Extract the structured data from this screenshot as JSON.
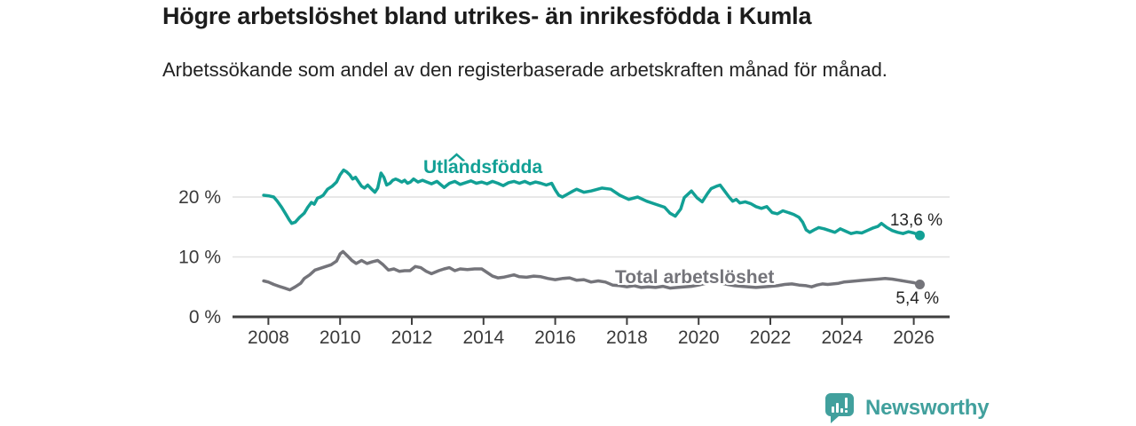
{
  "header": {
    "title": "Högre arbetslöshet bland utrikes- än inrikesfödda i Kumla",
    "subtitle": "Arbetssökande som andel av den registerbaserade arbetskraften månad för månad."
  },
  "footer": {
    "brand": "Newsworthy"
  },
  "chart_data": {
    "type": "line",
    "title": "Högre arbetslöshet bland utrikes- än inrikesfödda i Kumla",
    "subtitle": "Arbetssökande som andel av den registerbaserade arbetskraften månad för månad.",
    "xlabel": "",
    "ylabel": "",
    "xlim": [
      2007,
      2027
    ],
    "ylim": [
      0,
      27.7
    ],
    "grid": "horizontal",
    "legend_position": "inline-labels",
    "colors": {
      "grid": "#e1e1e1",
      "axis": "#3f3f3f",
      "axis_text": "#3a3a3a"
    },
    "x_ticks": [
      {
        "value": 2008,
        "label": "2008"
      },
      {
        "value": 2010,
        "label": "2010"
      },
      {
        "value": 2012,
        "label": "2012"
      },
      {
        "value": 2014,
        "label": "2014"
      },
      {
        "value": 2016,
        "label": "2016"
      },
      {
        "value": 2018,
        "label": "2018"
      },
      {
        "value": 2020,
        "label": "2020"
      },
      {
        "value": 2022,
        "label": "2022"
      },
      {
        "value": 2024,
        "label": "2024"
      },
      {
        "value": 2026,
        "label": "2026"
      }
    ],
    "y_ticks": [
      {
        "value": 0,
        "label": "0 %"
      },
      {
        "value": 10,
        "label": "10 %"
      },
      {
        "value": 20,
        "label": "20 %"
      }
    ],
    "annotations": [
      {
        "type": "caret",
        "x": 2013.25,
        "y": 27.1,
        "color": "#12a095"
      }
    ],
    "series": [
      {
        "name": "Utlandsfödda",
        "color": "#12a095",
        "end_label": "13,6 %",
        "end_value": 13.6,
        "points": [
          [
            2007.87,
            20.3
          ],
          [
            2008.0,
            20.2
          ],
          [
            2008.15,
            20.0
          ],
          [
            2008.25,
            19.3
          ],
          [
            2008.37,
            18.3
          ],
          [
            2008.5,
            17.0
          ],
          [
            2008.58,
            16.2
          ],
          [
            2008.65,
            15.6
          ],
          [
            2008.75,
            15.8
          ],
          [
            2008.87,
            16.6
          ],
          [
            2009.0,
            17.3
          ],
          [
            2009.1,
            18.3
          ],
          [
            2009.2,
            19.1
          ],
          [
            2009.28,
            18.8
          ],
          [
            2009.37,
            19.8
          ],
          [
            2009.45,
            20.0
          ],
          [
            2009.53,
            20.3
          ],
          [
            2009.65,
            21.3
          ],
          [
            2009.78,
            21.8
          ],
          [
            2009.9,
            22.5
          ],
          [
            2010.0,
            23.7
          ],
          [
            2010.1,
            24.5
          ],
          [
            2010.18,
            24.2
          ],
          [
            2010.27,
            23.7
          ],
          [
            2010.35,
            23.0
          ],
          [
            2010.43,
            23.3
          ],
          [
            2010.52,
            22.5
          ],
          [
            2010.6,
            21.8
          ],
          [
            2010.68,
            21.5
          ],
          [
            2010.77,
            22.0
          ],
          [
            2010.88,
            21.3
          ],
          [
            2010.97,
            20.8
          ],
          [
            2011.05,
            21.5
          ],
          [
            2011.14,
            24.0
          ],
          [
            2011.22,
            23.3
          ],
          [
            2011.3,
            22.0
          ],
          [
            2011.39,
            22.3
          ],
          [
            2011.47,
            22.8
          ],
          [
            2011.55,
            23.0
          ],
          [
            2011.63,
            22.8
          ],
          [
            2011.72,
            22.5
          ],
          [
            2011.8,
            22.8
          ],
          [
            2011.88,
            22.3
          ],
          [
            2011.96,
            22.5
          ],
          [
            2012.05,
            23.0
          ],
          [
            2012.17,
            22.5
          ],
          [
            2012.3,
            22.8
          ],
          [
            2012.42,
            22.5
          ],
          [
            2012.55,
            22.2
          ],
          [
            2012.7,
            22.6
          ],
          [
            2012.9,
            21.6
          ],
          [
            2013.05,
            22.3
          ],
          [
            2013.2,
            22.6
          ],
          [
            2013.35,
            22.1
          ],
          [
            2013.5,
            22.4
          ],
          [
            2013.65,
            22.7
          ],
          [
            2013.8,
            22.3
          ],
          [
            2013.95,
            22.5
          ],
          [
            2014.1,
            22.2
          ],
          [
            2014.25,
            22.6
          ],
          [
            2014.4,
            22.3
          ],
          [
            2014.55,
            21.9
          ],
          [
            2014.7,
            22.4
          ],
          [
            2014.85,
            22.6
          ],
          [
            2015.0,
            22.3
          ],
          [
            2015.15,
            22.6
          ],
          [
            2015.3,
            22.2
          ],
          [
            2015.45,
            22.5
          ],
          [
            2015.6,
            22.3
          ],
          [
            2015.75,
            22.0
          ],
          [
            2015.9,
            22.3
          ],
          [
            2016.0,
            21.2
          ],
          [
            2016.1,
            20.3
          ],
          [
            2016.2,
            20.0
          ],
          [
            2016.35,
            20.5
          ],
          [
            2016.5,
            21.0
          ],
          [
            2016.6,
            21.3
          ],
          [
            2016.8,
            20.8
          ],
          [
            2017.0,
            21.0
          ],
          [
            2017.3,
            21.5
          ],
          [
            2017.55,
            21.3
          ],
          [
            2017.8,
            20.3
          ],
          [
            2018.05,
            19.6
          ],
          [
            2018.3,
            20.0
          ],
          [
            2018.55,
            19.3
          ],
          [
            2018.8,
            18.8
          ],
          [
            2019.05,
            18.3
          ],
          [
            2019.2,
            17.3
          ],
          [
            2019.35,
            16.8
          ],
          [
            2019.5,
            18.0
          ],
          [
            2019.6,
            19.9
          ],
          [
            2019.8,
            21.0
          ],
          [
            2019.95,
            19.9
          ],
          [
            2020.1,
            19.2
          ],
          [
            2020.25,
            20.6
          ],
          [
            2020.35,
            21.4
          ],
          [
            2020.5,
            21.8
          ],
          [
            2020.6,
            22.0
          ],
          [
            2020.7,
            21.2
          ],
          [
            2020.85,
            20.0
          ],
          [
            2020.95,
            19.3
          ],
          [
            2021.05,
            19.6
          ],
          [
            2021.15,
            19.0
          ],
          [
            2021.3,
            19.2
          ],
          [
            2021.45,
            18.9
          ],
          [
            2021.6,
            18.4
          ],
          [
            2021.75,
            18.1
          ],
          [
            2021.9,
            18.4
          ],
          [
            2022.05,
            17.4
          ],
          [
            2022.2,
            17.2
          ],
          [
            2022.35,
            17.7
          ],
          [
            2022.5,
            17.4
          ],
          [
            2022.65,
            17.1
          ],
          [
            2022.8,
            16.6
          ],
          [
            2022.9,
            15.8
          ],
          [
            2023.0,
            14.5
          ],
          [
            2023.1,
            14.1
          ],
          [
            2023.25,
            14.6
          ],
          [
            2023.35,
            14.9
          ],
          [
            2023.5,
            14.7
          ],
          [
            2023.65,
            14.4
          ],
          [
            2023.8,
            14.1
          ],
          [
            2023.95,
            14.7
          ],
          [
            2024.1,
            14.3
          ],
          [
            2024.25,
            13.9
          ],
          [
            2024.4,
            14.1
          ],
          [
            2024.55,
            14.0
          ],
          [
            2024.7,
            14.4
          ],
          [
            2024.85,
            14.8
          ],
          [
            2025.0,
            15.1
          ],
          [
            2025.1,
            15.6
          ],
          [
            2025.25,
            14.9
          ],
          [
            2025.4,
            14.4
          ],
          [
            2025.55,
            14.1
          ],
          [
            2025.7,
            13.9
          ],
          [
            2025.85,
            14.2
          ],
          [
            2026.0,
            14.0
          ],
          [
            2026.17,
            13.6
          ]
        ]
      },
      {
        "name": "Total arbetslöshet",
        "color": "#74747a",
        "end_label": "5,4 %",
        "end_value": 5.4,
        "points": [
          [
            2007.87,
            6.0
          ],
          [
            2008.0,
            5.8
          ],
          [
            2008.15,
            5.4
          ],
          [
            2008.3,
            5.1
          ],
          [
            2008.45,
            4.8
          ],
          [
            2008.6,
            4.5
          ],
          [
            2008.75,
            5.0
          ],
          [
            2008.9,
            5.6
          ],
          [
            2009.0,
            6.4
          ],
          [
            2009.15,
            7.0
          ],
          [
            2009.3,
            7.8
          ],
          [
            2009.45,
            8.1
          ],
          [
            2009.6,
            8.4
          ],
          [
            2009.75,
            8.7
          ],
          [
            2009.9,
            9.3
          ],
          [
            2010.0,
            10.5
          ],
          [
            2010.08,
            10.9
          ],
          [
            2010.2,
            10.2
          ],
          [
            2010.33,
            9.4
          ],
          [
            2010.45,
            8.9
          ],
          [
            2010.6,
            9.4
          ],
          [
            2010.75,
            8.9
          ],
          [
            2010.9,
            9.2
          ],
          [
            2011.05,
            9.4
          ],
          [
            2011.2,
            8.7
          ],
          [
            2011.35,
            7.8
          ],
          [
            2011.5,
            8.0
          ],
          [
            2011.65,
            7.6
          ],
          [
            2011.8,
            7.7
          ],
          [
            2011.95,
            7.7
          ],
          [
            2012.1,
            8.4
          ],
          [
            2012.25,
            8.2
          ],
          [
            2012.4,
            7.6
          ],
          [
            2012.55,
            7.2
          ],
          [
            2012.75,
            7.7
          ],
          [
            2012.9,
            8.0
          ],
          [
            2013.05,
            8.2
          ],
          [
            2013.2,
            7.7
          ],
          [
            2013.35,
            8.0
          ],
          [
            2013.55,
            7.9
          ],
          [
            2013.75,
            8.0
          ],
          [
            2013.95,
            8.0
          ],
          [
            2014.1,
            7.4
          ],
          [
            2014.25,
            6.8
          ],
          [
            2014.4,
            6.5
          ],
          [
            2014.55,
            6.6
          ],
          [
            2014.7,
            6.8
          ],
          [
            2014.85,
            7.0
          ],
          [
            2015.0,
            6.7
          ],
          [
            2015.2,
            6.6
          ],
          [
            2015.4,
            6.8
          ],
          [
            2015.6,
            6.7
          ],
          [
            2015.8,
            6.4
          ],
          [
            2016.0,
            6.2
          ],
          [
            2016.2,
            6.4
          ],
          [
            2016.4,
            6.5
          ],
          [
            2016.6,
            6.1
          ],
          [
            2016.8,
            6.2
          ],
          [
            2017.0,
            5.8
          ],
          [
            2017.2,
            6.0
          ],
          [
            2017.4,
            5.8
          ],
          [
            2017.6,
            5.3
          ],
          [
            2017.8,
            5.2
          ],
          [
            2018.0,
            5.0
          ],
          [
            2018.2,
            5.2
          ],
          [
            2018.4,
            4.9
          ],
          [
            2018.6,
            5.0
          ],
          [
            2018.8,
            4.9
          ],
          [
            2019.0,
            5.1
          ],
          [
            2019.2,
            4.8
          ],
          [
            2019.4,
            4.9
          ],
          [
            2019.6,
            5.0
          ],
          [
            2019.8,
            5.1
          ],
          [
            2020.0,
            5.3
          ],
          [
            2020.2,
            5.6
          ],
          [
            2020.4,
            5.9
          ],
          [
            2020.6,
            5.7
          ],
          [
            2020.8,
            5.4
          ],
          [
            2021.0,
            5.2
          ],
          [
            2021.2,
            5.1
          ],
          [
            2021.4,
            5.0
          ],
          [
            2021.6,
            4.9
          ],
          [
            2021.8,
            5.0
          ],
          [
            2022.0,
            5.1
          ],
          [
            2022.2,
            5.2
          ],
          [
            2022.4,
            5.4
          ],
          [
            2022.6,
            5.5
          ],
          [
            2022.8,
            5.3
          ],
          [
            2023.0,
            5.2
          ],
          [
            2023.15,
            5.0
          ],
          [
            2023.3,
            5.3
          ],
          [
            2023.45,
            5.5
          ],
          [
            2023.6,
            5.4
          ],
          [
            2023.75,
            5.5
          ],
          [
            2023.9,
            5.6
          ],
          [
            2024.05,
            5.8
          ],
          [
            2024.2,
            5.9
          ],
          [
            2024.4,
            6.0
          ],
          [
            2024.6,
            6.1
          ],
          [
            2024.8,
            6.2
          ],
          [
            2025.0,
            6.3
          ],
          [
            2025.2,
            6.4
          ],
          [
            2025.4,
            6.3
          ],
          [
            2025.6,
            6.1
          ],
          [
            2025.8,
            5.9
          ],
          [
            2026.0,
            5.7
          ],
          [
            2026.17,
            5.4
          ]
        ]
      }
    ]
  }
}
